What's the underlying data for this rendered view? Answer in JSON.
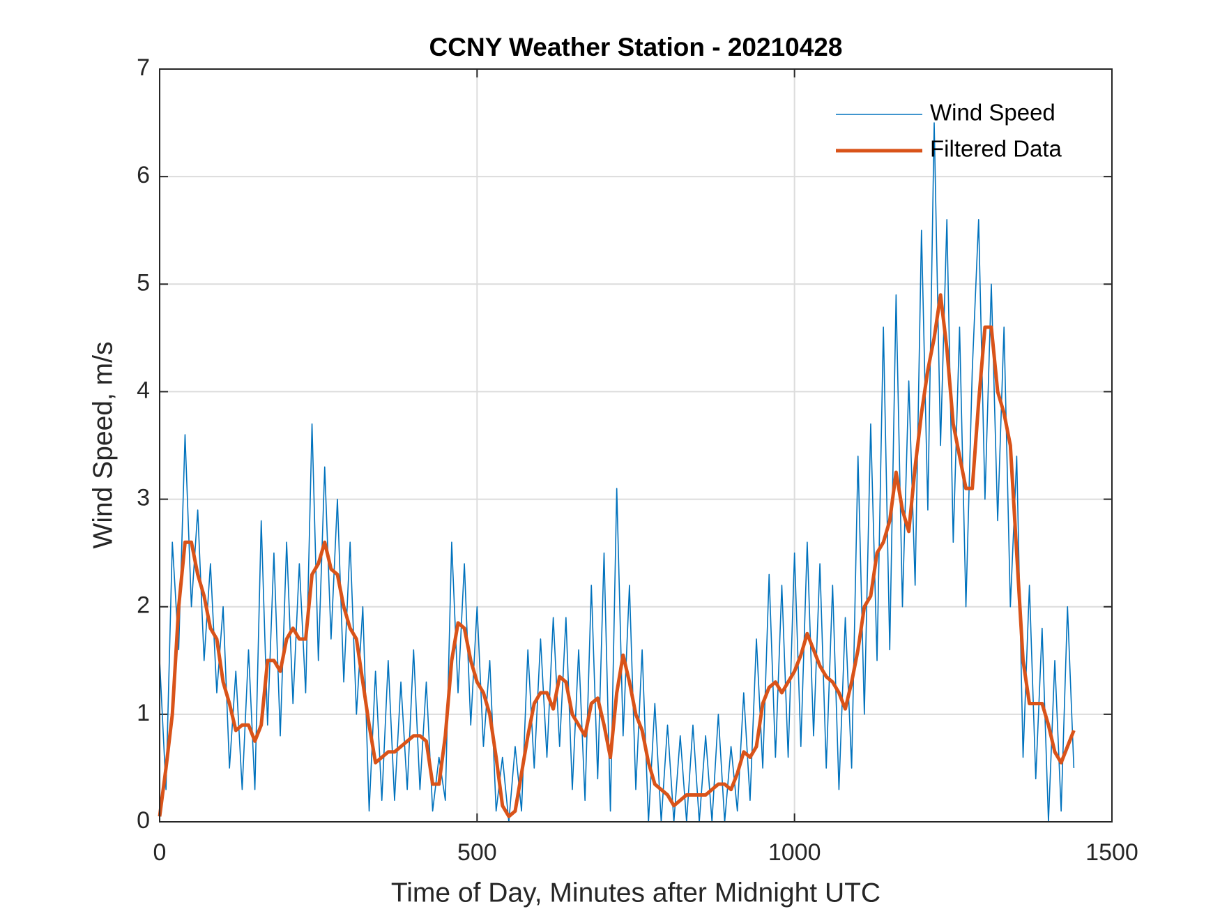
{
  "chart_data": {
    "type": "line",
    "title": "CCNY Weather Station - 20210428",
    "x_label": "Time of Day, Minutes after Midnight UTC",
    "y_label": "Wind Speed, m/s",
    "x": [
      0,
      10,
      20,
      30,
      40,
      50,
      60,
      70,
      80,
      90,
      100,
      110,
      120,
      130,
      140,
      150,
      160,
      170,
      180,
      190,
      200,
      210,
      220,
      230,
      240,
      250,
      260,
      270,
      280,
      290,
      300,
      310,
      320,
      330,
      340,
      350,
      360,
      370,
      380,
      390,
      400,
      410,
      420,
      430,
      440,
      450,
      460,
      470,
      480,
      490,
      500,
      510,
      520,
      530,
      540,
      550,
      560,
      570,
      580,
      590,
      600,
      610,
      620,
      630,
      640,
      650,
      660,
      670,
      680,
      690,
      700,
      710,
      720,
      730,
      740,
      750,
      760,
      770,
      780,
      790,
      800,
      810,
      820,
      830,
      840,
      850,
      860,
      870,
      880,
      890,
      900,
      910,
      920,
      930,
      940,
      950,
      960,
      970,
      980,
      990,
      1000,
      1010,
      1020,
      1030,
      1040,
      1050,
      1060,
      1070,
      1080,
      1090,
      1100,
      1110,
      1120,
      1130,
      1140,
      1150,
      1160,
      1170,
      1180,
      1190,
      1200,
      1210,
      1220,
      1230,
      1240,
      1250,
      1260,
      1270,
      1280,
      1290,
      1300,
      1310,
      1320,
      1330,
      1340,
      1350,
      1360,
      1370,
      1380,
      1390,
      1400,
      1410,
      1420,
      1430,
      1440
    ],
    "series": [
      {
        "name": "Wind Speed",
        "color": "#0072bd",
        "width": 1.6,
        "values": [
          1.5,
          0.3,
          2.6,
          1.6,
          3.6,
          2.0,
          2.9,
          1.5,
          2.4,
          1.2,
          2.0,
          0.5,
          1.4,
          0.3,
          1.6,
          0.3,
          2.8,
          0.9,
          2.5,
          0.8,
          2.6,
          1.1,
          2.4,
          1.2,
          3.7,
          1.5,
          3.3,
          1.7,
          3.0,
          1.3,
          2.6,
          1.0,
          2.0,
          0.1,
          1.4,
          0.2,
          1.5,
          0.2,
          1.3,
          0.3,
          1.6,
          0.3,
          1.3,
          0.1,
          0.6,
          0.2,
          2.6,
          1.2,
          2.4,
          0.9,
          2.0,
          0.7,
          1.5,
          0.1,
          0.6,
          0.0,
          0.7,
          0.1,
          1.6,
          0.5,
          1.7,
          0.6,
          1.9,
          0.7,
          1.9,
          0.3,
          1.6,
          0.2,
          2.2,
          0.4,
          2.5,
          0.1,
          3.1,
          0.8,
          2.2,
          0.3,
          1.6,
          0.0,
          1.1,
          0.0,
          0.9,
          0.0,
          0.8,
          0.0,
          0.9,
          0.0,
          0.8,
          0.0,
          1.0,
          0.0,
          0.7,
          0.1,
          1.2,
          0.2,
          1.7,
          0.5,
          2.3,
          0.6,
          2.2,
          0.6,
          2.5,
          0.7,
          2.6,
          0.8,
          2.4,
          0.5,
          2.2,
          0.3,
          1.9,
          0.5,
          3.4,
          1.0,
          3.7,
          1.5,
          4.6,
          1.6,
          4.9,
          2.0,
          4.1,
          2.2,
          5.5,
          2.9,
          6.5,
          3.5,
          5.6,
          2.6,
          4.6,
          2.0,
          4.2,
          5.6,
          3.0,
          5.0,
          2.8,
          4.6,
          2.0,
          3.4,
          0.6,
          2.2,
          0.4,
          1.8,
          0.0,
          1.5,
          0.1,
          2.0,
          0.5
        ]
      },
      {
        "name": "Filtered Data",
        "color": "#d95319",
        "width": 5,
        "values": [
          0.05,
          0.5,
          1.0,
          2.0,
          2.6,
          2.6,
          2.3,
          2.1,
          1.8,
          1.7,
          1.3,
          1.1,
          0.85,
          0.9,
          0.9,
          0.75,
          0.9,
          1.5,
          1.5,
          1.4,
          1.7,
          1.8,
          1.7,
          1.7,
          2.3,
          2.4,
          2.6,
          2.35,
          2.3,
          2.0,
          1.8,
          1.7,
          1.3,
          0.9,
          0.55,
          0.6,
          0.65,
          0.65,
          0.7,
          0.75,
          0.8,
          0.8,
          0.75,
          0.35,
          0.35,
          0.8,
          1.5,
          1.85,
          1.8,
          1.5,
          1.3,
          1.2,
          1.0,
          0.6,
          0.15,
          0.05,
          0.1,
          0.45,
          0.8,
          1.1,
          1.2,
          1.2,
          1.05,
          1.35,
          1.3,
          1.0,
          0.9,
          0.8,
          1.1,
          1.15,
          0.9,
          0.6,
          1.2,
          1.55,
          1.3,
          1.0,
          0.85,
          0.55,
          0.35,
          0.3,
          0.25,
          0.15,
          0.2,
          0.25,
          0.25,
          0.25,
          0.25,
          0.3,
          0.35,
          0.35,
          0.3,
          0.45,
          0.65,
          0.6,
          0.7,
          1.1,
          1.25,
          1.3,
          1.2,
          1.3,
          1.4,
          1.55,
          1.75,
          1.6,
          1.45,
          1.35,
          1.3,
          1.2,
          1.05,
          1.3,
          1.6,
          2.0,
          2.1,
          2.5,
          2.6,
          2.8,
          3.25,
          2.9,
          2.7,
          3.3,
          3.8,
          4.2,
          4.5,
          4.9,
          4.4,
          3.7,
          3.4,
          3.1,
          3.1,
          3.9,
          4.6,
          4.6,
          4.0,
          3.8,
          3.5,
          2.5,
          1.5,
          1.1,
          1.1,
          1.1,
          0.9,
          0.65,
          0.55,
          0.7,
          0.85
        ]
      }
    ],
    "xlim": [
      0,
      1500
    ],
    "xticks": [
      0,
      500,
      1000,
      1500
    ],
    "ylim": [
      0,
      7
    ],
    "yticks": [
      0,
      1,
      2,
      3,
      4,
      5,
      6,
      7
    ],
    "grid": true,
    "legend": "upper right"
  }
}
